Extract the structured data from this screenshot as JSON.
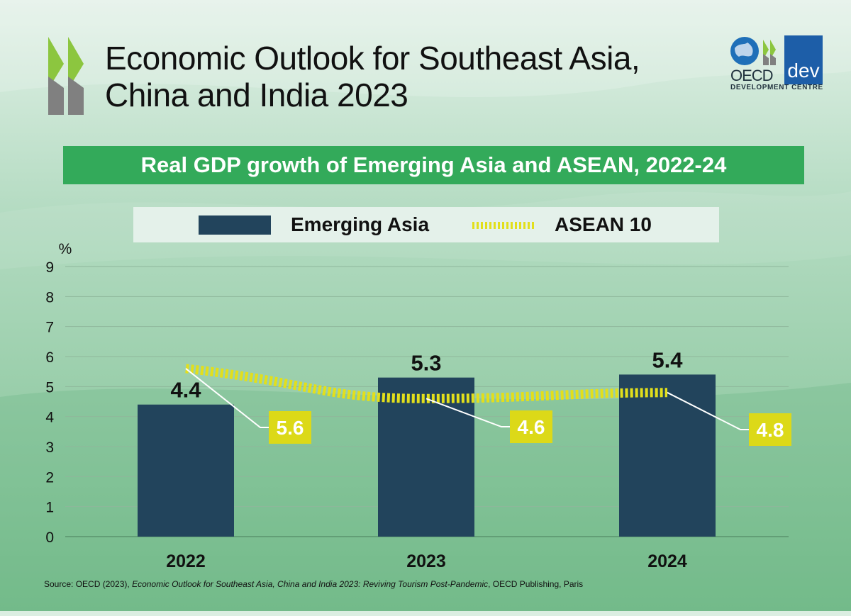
{
  "header": {
    "title_line1": "Economic Outlook for Southeast Asia,",
    "title_line2": "China and India 2023"
  },
  "logo": {
    "oecd": "OECD",
    "dev": "dev",
    "sub": "DEVELOPMENT CENTRE",
    "icons": [
      "globe-icon",
      "chevrons-icon"
    ]
  },
  "colors": {
    "bar": "#22445c",
    "line": "#e2df1c",
    "label_box": "#dcd918",
    "accent_green": "#33aa5a"
  },
  "chart_data": {
    "type": "bar",
    "title": "Real GDP growth of Emerging Asia and ASEAN, 2022-24",
    "ylabel": "%",
    "ylim": [
      0,
      9
    ],
    "yticks": [
      "0",
      "1",
      "2",
      "3",
      "4",
      "5",
      "6",
      "7",
      "8",
      "9"
    ],
    "grid": true,
    "categories": [
      "2022",
      "2023",
      "2024"
    ],
    "series": [
      {
        "name": "Emerging Asia",
        "type": "bar",
        "values": [
          4.4,
          5.3,
          5.4
        ],
        "labels": [
          "4.4",
          "5.3",
          "5.4"
        ]
      },
      {
        "name": "ASEAN 10",
        "type": "line",
        "style": "dotted",
        "values": [
          5.6,
          4.6,
          4.8
        ],
        "labels": [
          "5.6",
          "4.6",
          "4.8"
        ]
      }
    ],
    "legend": "top"
  },
  "source": {
    "prefix": "Source:  OECD (2023), ",
    "italic": "Economic Outlook for Southeast Asia, China and India 2023: Reviving Tourism Post-Pandemic",
    "suffix": ", OECD Publishing, Paris"
  }
}
